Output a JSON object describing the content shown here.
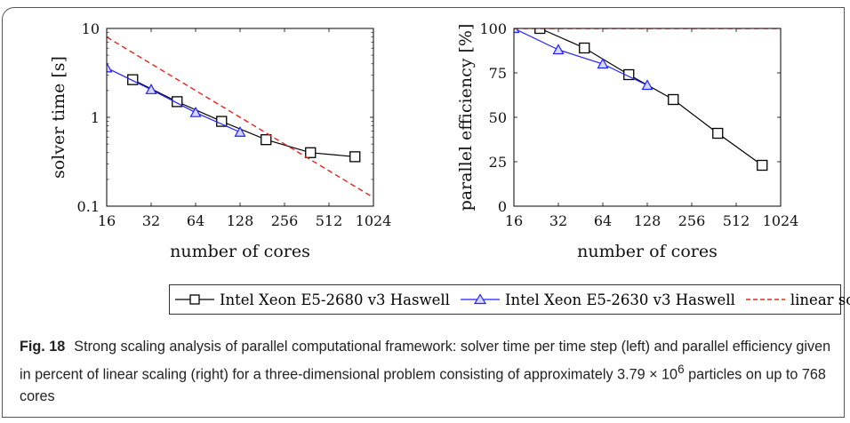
{
  "chart_data": [
    {
      "type": "line",
      "xscale": "log2",
      "yscale": "log10",
      "xlabel": "number of cores",
      "ylabel": "solver time [s]",
      "xlim": [
        16,
        1024
      ],
      "ylim": [
        0.1,
        10
      ],
      "xticks": [
        16,
        32,
        64,
        128,
        256,
        512,
        1024
      ],
      "xtick_labels": [
        "16",
        "32",
        "64",
        "128",
        "256",
        "512",
        "1024"
      ],
      "yticks": [
        0.1,
        1,
        10
      ],
      "ytick_labels": [
        "0.1",
        "1",
        "10"
      ],
      "series": [
        {
          "name": "Intel Xeon E5-2680 v3 Haswell",
          "color": "#000000",
          "marker": "square",
          "x": [
            24,
            48,
            96,
            192,
            384,
            768
          ],
          "y": [
            2.65,
            1.5,
            0.9,
            0.56,
            0.4,
            0.36
          ]
        },
        {
          "name": "Intel Xeon E5-2630 v3 Haswell",
          "color": "#1f1fff",
          "marker": "triangle",
          "x": [
            16,
            32,
            64,
            128
          ],
          "y": [
            3.6,
            2.05,
            1.13,
            0.68
          ]
        },
        {
          "name": "linear scaling",
          "color": "#e8231c",
          "dash": true,
          "x": [
            16,
            1024
          ],
          "y": [
            8.0,
            0.125
          ]
        }
      ]
    },
    {
      "type": "line",
      "xscale": "log2",
      "xlabel": "number of cores",
      "ylabel": "parallel efficiency [%]",
      "xlim": [
        16,
        1024
      ],
      "ylim": [
        0,
        100
      ],
      "xticks": [
        16,
        32,
        64,
        128,
        256,
        512,
        1024
      ],
      "xtick_labels": [
        "16",
        "32",
        "64",
        "128",
        "256",
        "512",
        "1024"
      ],
      "yticks": [
        0,
        25,
        50,
        75,
        100
      ],
      "ytick_labels": [
        "0",
        "25",
        "50",
        "75",
        "100"
      ],
      "series": [
        {
          "name": "Intel Xeon E5-2680 v3 Haswell",
          "color": "#000000",
          "marker": "square",
          "x": [
            24,
            48,
            96,
            192,
            384,
            768
          ],
          "y": [
            100,
            89,
            74,
            60,
            41,
            23
          ]
        },
        {
          "name": "Intel Xeon E5-2630 v3 Haswell",
          "color": "#1f1fff",
          "marker": "triangle",
          "x": [
            16,
            32,
            64,
            128
          ],
          "y": [
            100,
            88,
            80,
            68
          ]
        },
        {
          "name": "linear scaling",
          "color": "#e8231c",
          "dash": true,
          "x": [
            16,
            1024
          ],
          "y": [
            100,
            100
          ]
        }
      ]
    }
  ],
  "legend": {
    "items": [
      {
        "label": "Intel Xeon E5-2680 v3 Haswell",
        "color": "#000000",
        "marker": "square"
      },
      {
        "label": "Intel Xeon E5-2630 v3 Haswell",
        "color": "#1f1fff",
        "marker": "triangle"
      },
      {
        "label": "linear scaling",
        "color": "#e8231c",
        "marker": "dash"
      }
    ]
  },
  "caption": {
    "fig_label": "Fig. 18",
    "text_before_exp": "Strong scaling analysis of parallel computational framework: solver time per time step (left) and parallel efficiency given in percent of linear scaling (right) for a three-dimensional problem consisting of approximately 3.79 × 10",
    "exponent": "6",
    "text_after_exp": " particles on up to 768 cores"
  }
}
